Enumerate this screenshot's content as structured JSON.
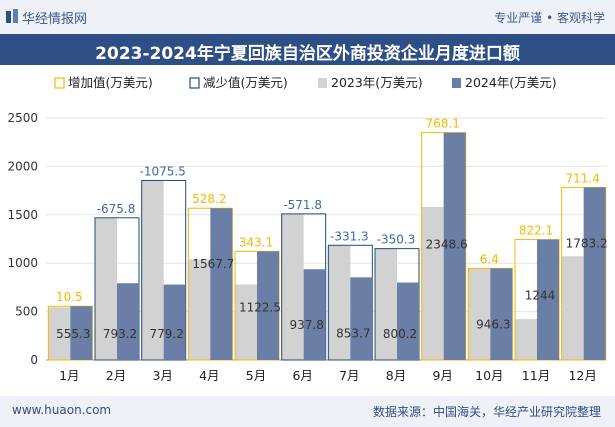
{
  "header": {
    "brand": "华经情报网",
    "tagline": "专业严谨 • 客观科学",
    "title": "2023-2024年宁夏回族自治区外商投资企业月度进口额"
  },
  "footer": {
    "site": "www.huaon.com",
    "source": "数据来源：中国海关，华经产业研究院整理"
  },
  "colors": {
    "c2023": "#d2d2d2",
    "c2024": "#6a7ea6",
    "increase": "#f5b800",
    "decrease": "#1f4e79",
    "title_bg": "#2e4f86",
    "label_pos": "#f5b800",
    "label_neg": "#3d6aa3"
  },
  "chart_data": {
    "type": "bar",
    "categories": [
      "1月",
      "2月",
      "3月",
      "4月",
      "5月",
      "6月",
      "7月",
      "8月",
      "9月",
      "10月",
      "11月",
      "12月"
    ],
    "series": [
      {
        "name": "2023年(万美元)",
        "values": [
          544.8,
          1469.0,
          1854.7,
          1039.5,
          779.4,
          1509.6,
          1185.0,
          1150.5,
          1580.5,
          939.9,
          421.9,
          1071.8
        ]
      },
      {
        "name": "2024年(万美元)",
        "values": [
          555.3,
          793.2,
          779.2,
          1567.7,
          1122.5,
          937.8,
          853.7,
          800.2,
          2348.6,
          946.3,
          1244,
          1783.2
        ]
      }
    ],
    "changes": [
      "10.5",
      "-675.8",
      "-1075.5",
      "528.2",
      "343.1",
      "-571.8",
      "-331.3",
      "-350.3",
      "768.1",
      "6.4",
      "822.1",
      "711.4"
    ],
    "value_labels_2024": [
      "555.3",
      "793.2",
      "779.2",
      "1567.7",
      "1122.5",
      "937.8",
      "853.7",
      "800.2",
      "2348.6",
      "946.3",
      "1244",
      "1783.2"
    ],
    "legend": [
      "增加值(万美元)",
      "减少值(万美元)",
      "2023年(万美元)",
      "2024年(万美元)"
    ],
    "yticks": [
      "0",
      "500",
      "1000",
      "1500",
      "2000",
      "2500"
    ],
    "ylim": [
      0,
      2500
    ]
  }
}
